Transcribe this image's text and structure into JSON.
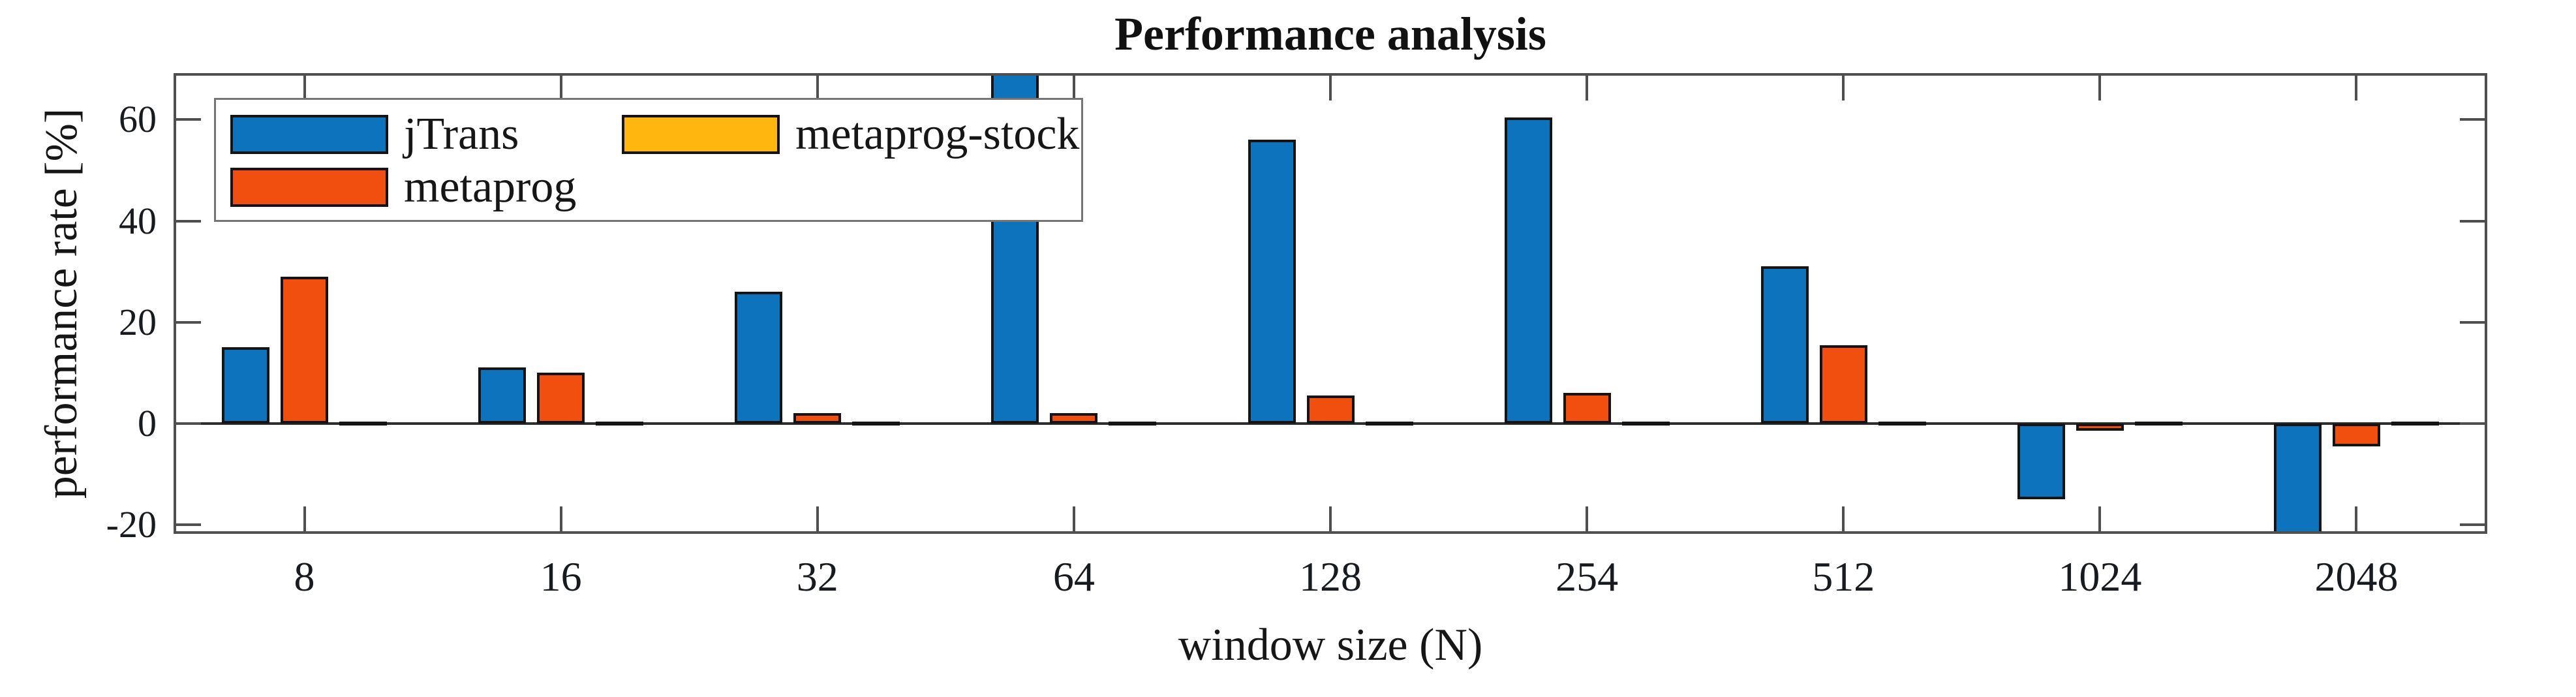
{
  "figure": {
    "title": "Performance analysis"
  },
  "chart_data": {
    "type": "bar",
    "title": "Performance analysis",
    "xlabel": "window size (N)",
    "ylabel": "performance rate [%]",
    "categories": [
      "8",
      "16",
      "32",
      "64",
      "128",
      "254",
      "512",
      "1024",
      "2048"
    ],
    "series": [
      {
        "name": "jTrans",
        "color": "#0d73bd",
        "values": [
          15,
          11,
          26,
          70,
          56,
          60.5,
          31,
          -15,
          -24
        ]
      },
      {
        "name": "metaprog",
        "color": "#f04f0f",
        "values": [
          29,
          10,
          2,
          2,
          5.5,
          6,
          15.5,
          -1.5,
          -4.5
        ]
      },
      {
        "name": "metaprog-stock",
        "color": "#ffb60e",
        "values": [
          0,
          0,
          0,
          0,
          0,
          0,
          0,
          0,
          0
        ]
      }
    ],
    "ylim": [
      -21.3,
      68.7
    ],
    "yticks": [
      -20,
      0,
      20,
      40,
      60
    ],
    "grid": false,
    "legend_position": "upper-left-inside",
    "axis_color": "#4f4f4f",
    "zero_line_color": "#2e2e2e",
    "bar_edge_color": "#141414",
    "notes": "metaprog-stock is ~0 at every window size (bars appear as flat dark lines on the zero axis). jTrans bars at N=64 (above +68) and N=2048 (below -21) are clipped by the y-axis limits."
  }
}
